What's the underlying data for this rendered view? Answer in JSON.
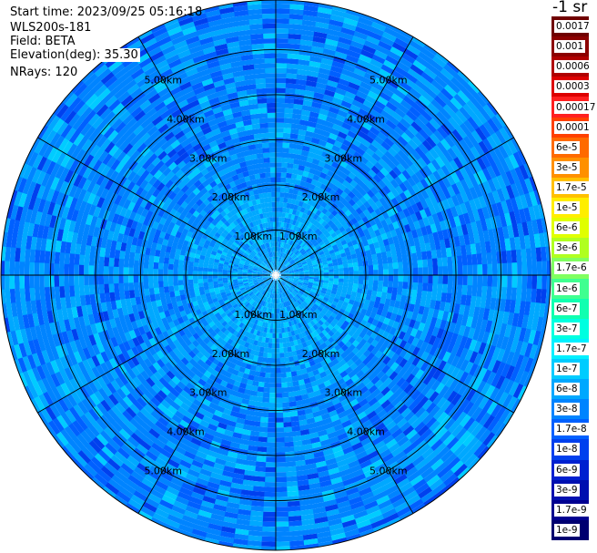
{
  "info": {
    "start_time": "Start time: 2023/09/25 05:16:18",
    "instrument": "WLS200s-181",
    "field": "Field: BETA",
    "elevation": "Elevation(deg): 35.30",
    "nrays": "NRays: 120"
  },
  "colorbar": {
    "units": "-1 sr",
    "labels": [
      "0.0017",
      "0.001",
      "0.0006",
      "0.0003",
      "0.00017",
      "0.0001",
      "6e-5",
      "3e-5",
      "1.7e-5",
      "1e-5",
      "6e-6",
      "3e-6",
      "1.7e-6",
      "1e-6",
      "6e-7",
      "3e-7",
      "1.7e-7",
      "1e-7",
      "6e-8",
      "3e-8",
      "1.7e-8",
      "1e-8",
      "6e-9",
      "3e-9",
      "1.7e-9",
      "1e-9"
    ],
    "colors": [
      "#700000",
      "#8c0000",
      "#b00000",
      "#dd0000",
      "#ff2020",
      "#ff4000",
      "#ff6a00",
      "#ff9000",
      "#ffc000",
      "#ffee00",
      "#e0ff00",
      "#b0ff20",
      "#80ff60",
      "#40ff90",
      "#10ffb0",
      "#00ffe0",
      "#00f0ff",
      "#00ccff",
      "#00a8ff",
      "#0084ff",
      "#0060ff",
      "#0040ee",
      "#0020d0",
      "#0010b0",
      "#000090",
      "#000070"
    ]
  },
  "chart_data": {
    "type": "heatmap",
    "projection": "polar PPI",
    "field": "BETA",
    "units": "-1 sr",
    "nrays": 120,
    "elevation_deg": 35.3,
    "range_rings_km": [
      1.0,
      2.0,
      3.0,
      4.0,
      5.0
    ],
    "range_labels": [
      "1.00km",
      "2.00km",
      "3.00km",
      "4.00km",
      "5.00km"
    ],
    "azimuth_spokes_deg": [
      0,
      30,
      60,
      90,
      120,
      150,
      180,
      210,
      240,
      270,
      300,
      330
    ],
    "max_range_km": 6.1,
    "dominant_value_range": [
      "1e-8",
      "1.7e-7"
    ],
    "near_field_value": "1e-7"
  }
}
